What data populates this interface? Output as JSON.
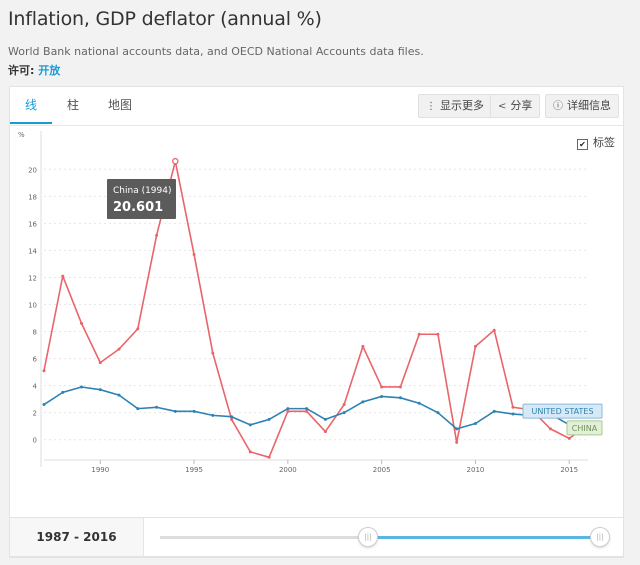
{
  "header": {
    "title": "Inflation, GDP deflator (annual %)",
    "source": "World Bank national accounts data, and OECD National Accounts data files.",
    "license_label": "许可:",
    "license_value": "开放"
  },
  "tabs": [
    {
      "label": "线",
      "active": true
    },
    {
      "label": "柱",
      "active": false
    },
    {
      "label": "地图",
      "active": false
    }
  ],
  "toolbar": {
    "more_label": "显示更多",
    "share_label": "分享",
    "details_label": "详细信息"
  },
  "labels_toggle": {
    "label": "标签",
    "checked": true
  },
  "range": {
    "label": "1987 - 2016",
    "start_year": 1987,
    "end_year": 2016,
    "min_year": 1961,
    "max_year": 2016
  },
  "tooltip": {
    "title": "China (1994)",
    "value": "20.601"
  },
  "colors": {
    "china": "#e8656a",
    "united_states": "#2e82b3",
    "accent": "#1a9bd7"
  },
  "chart_data": {
    "type": "line",
    "title": "",
    "ylabel": "%",
    "xlim": [
      1987,
      2016
    ],
    "ylim": [
      -1.5,
      21.5
    ],
    "y_ticks": [
      0,
      2,
      4,
      6,
      8,
      10,
      12,
      14,
      16,
      18,
      20
    ],
    "x_ticks": [
      1990,
      1995,
      2000,
      2005,
      2010,
      2015
    ],
    "grid": true,
    "x": [
      1987,
      1988,
      1989,
      1990,
      1991,
      1992,
      1993,
      1994,
      1995,
      1996,
      1997,
      1998,
      1999,
      2000,
      2001,
      2002,
      2003,
      2004,
      2005,
      2006,
      2007,
      2008,
      2009,
      2010,
      2011,
      2012,
      2013,
      2014,
      2015,
      2016
    ],
    "series": [
      {
        "name": "CHINA",
        "values": [
          5.1,
          12.1,
          8.6,
          5.7,
          6.7,
          8.2,
          15.1,
          20.6,
          13.7,
          6.4,
          1.5,
          -0.9,
          -1.3,
          2.1,
          2.1,
          0.6,
          2.6,
          6.9,
          3.9,
          3.9,
          7.8,
          7.8,
          -0.2,
          6.9,
          8.1,
          2.4,
          2.2,
          0.8,
          0.1,
          1.1
        ]
      },
      {
        "name": "UNITED STATES",
        "values": [
          2.6,
          3.5,
          3.9,
          3.7,
          3.3,
          2.3,
          2.4,
          2.1,
          2.1,
          1.8,
          1.7,
          1.1,
          1.5,
          2.3,
          2.3,
          1.5,
          2.0,
          2.8,
          3.2,
          3.1,
          2.7,
          2.0,
          0.8,
          1.2,
          2.1,
          1.9,
          1.8,
          1.9,
          1.1,
          1.3
        ]
      }
    ]
  }
}
